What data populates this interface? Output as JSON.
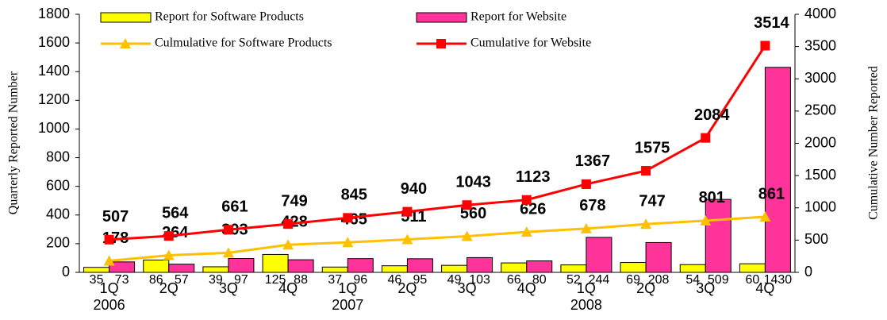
{
  "chart_data": {
    "type": "bar-line",
    "y_label": "Quarterly Reported Number",
    "y2_label": "Cumulative Number Reported",
    "categories": [
      "1Q",
      "2Q",
      "3Q",
      "4Q",
      "1Q",
      "2Q",
      "3Q",
      "4Q",
      "1Q",
      "2Q",
      "3Q",
      "4Q"
    ],
    "category_years": [
      "2006",
      null,
      null,
      null,
      "2007",
      null,
      null,
      null,
      "2008",
      null,
      null,
      null
    ],
    "series": [
      {
        "name": "Report for Software Products",
        "kind": "bar",
        "color": "#ffff00",
        "values": [
          35,
          86,
          39,
          125,
          37,
          46,
          49,
          66,
          52,
          69,
          54,
          60
        ]
      },
      {
        "name": "Report for Website",
        "kind": "bar",
        "color": "#ff3399",
        "values": [
          73,
          57,
          97,
          88,
          96,
          95,
          103,
          80,
          244,
          208,
          509,
          1430
        ]
      },
      {
        "name": "Culmulative for Software Products",
        "kind": "line",
        "axis": "y2",
        "marker": "triangle",
        "color": "#ffc000",
        "values": [
          178,
          264,
          303,
          428,
          465,
          511,
          560,
          626,
          678,
          747,
          801,
          861
        ]
      },
      {
        "name": "Cumulative for Website",
        "kind": "line",
        "axis": "y2",
        "marker": "square",
        "color": "#ff0000",
        "values": [
          507,
          564,
          661,
          749,
          845,
          940,
          1043,
          1123,
          1367,
          1575,
          2084,
          3514
        ]
      }
    ],
    "ylim": [
      0,
      1800
    ],
    "yticks": [
      0,
      200,
      400,
      600,
      800,
      1000,
      1200,
      1400,
      1600,
      1800
    ],
    "y2lim": [
      0,
      4000
    ],
    "y2ticks": [
      0,
      500,
      1000,
      1500,
      2000,
      2500,
      3000,
      3500,
      4000
    ]
  }
}
